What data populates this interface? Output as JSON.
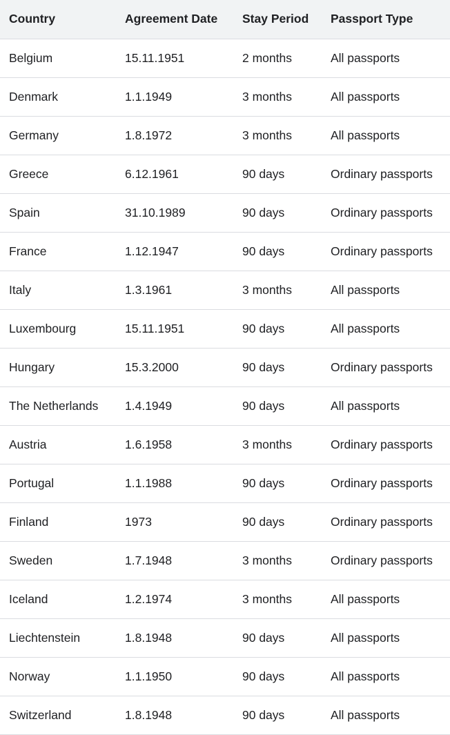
{
  "table": {
    "headers": [
      "Country",
      "Agreement Date",
      "Stay Period",
      "Passport Type"
    ],
    "rows": [
      [
        "Belgium",
        "15.11.1951",
        "2 months",
        "All passports"
      ],
      [
        "Denmark",
        "1.1.1949",
        "3 months",
        "All passports"
      ],
      [
        "Germany",
        "1.8.1972",
        "3 months",
        "All passports"
      ],
      [
        "Greece",
        "6.12.1961",
        "90 days",
        "Ordinary passports"
      ],
      [
        "Spain",
        "31.10.1989",
        "90 days",
        "Ordinary passports"
      ],
      [
        "France",
        "1.12.1947",
        "90 days",
        "Ordinary passports"
      ],
      [
        "Italy",
        "1.3.1961",
        "3 months",
        "All passports"
      ],
      [
        "Luxembourg",
        "15.11.1951",
        "90 days",
        "All passports"
      ],
      [
        "Hungary",
        "15.3.2000",
        "90 days",
        "Ordinary passports"
      ],
      [
        "The Netherlands",
        "1.4.1949",
        "90 days",
        "All passports"
      ],
      [
        "Austria",
        "1.6.1958",
        "3 months",
        "Ordinary passports"
      ],
      [
        "Portugal",
        "1.1.1988",
        "90 days",
        "Ordinary passports"
      ],
      [
        "Finland",
        "1973",
        "90 days",
        "Ordinary passports"
      ],
      [
        "Sweden",
        "1.7.1948",
        "3 months",
        "Ordinary passports"
      ],
      [
        "Iceland",
        "1.2.1974",
        "3 months",
        "All passports"
      ],
      [
        "Liechtenstein",
        "1.8.1948",
        "90 days",
        "All passports"
      ],
      [
        "Norway",
        "1.1.1950",
        "90 days",
        "All passports"
      ],
      [
        "Switzerland",
        "1.8.1948",
        "90 days",
        "All passports"
      ]
    ]
  },
  "colors": {
    "header_background": "#f1f3f4",
    "row_divider": "#dadce0",
    "text": "#202124"
  }
}
